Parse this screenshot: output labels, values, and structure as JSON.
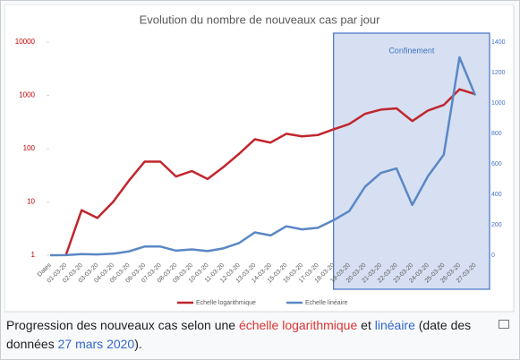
{
  "chart_data": {
    "type": "line",
    "title": "Evolution du nombre de nouveaux cas par jour",
    "annotation": "Confinement",
    "shade_from": "18-03-20",
    "categories": [
      "Dates",
      "01-03-20",
      "02-03-20",
      "03-03-20",
      "04-03-20",
      "05-03-20",
      "06-03-20",
      "07-03-20",
      "08-03-20",
      "09-03-20",
      "10-03-20",
      "11-03-20",
      "12-03-20",
      "13-03-20",
      "14-03-20",
      "15-03-20",
      "16-03-20",
      "17-03-20",
      "18-03-20",
      "19-03-20",
      "20-03-20",
      "21-03-20",
      "22-03-20",
      "23-03-20",
      "24-03-20",
      "25-03-20",
      "26-03-20",
      "27-03-20"
    ],
    "series": [
      {
        "name": "Echelle logarithmique",
        "color": "#c0262d",
        "axis": "y",
        "values": [
          null,
          1,
          7,
          5,
          10,
          25,
          57,
          57,
          30,
          38,
          27,
          45,
          80,
          150,
          130,
          190,
          170,
          180,
          230,
          290,
          450,
          540,
          570,
          330,
          520,
          660,
          1300,
          1050
        ]
      },
      {
        "name": "Echelle linéaire",
        "color": "#5b87c5",
        "axis": "y2",
        "values": [
          0,
          1,
          7,
          5,
          10,
          25,
          57,
          57,
          30,
          38,
          27,
          45,
          80,
          150,
          130,
          190,
          170,
          180,
          230,
          290,
          450,
          540,
          570,
          330,
          520,
          660,
          1300,
          1050
        ]
      }
    ],
    "ylim": [
      1,
      10000
    ],
    "yscale": "log",
    "yticks": [
      1,
      10,
      100,
      1000,
      10000
    ],
    "y2lim": [
      0,
      1400
    ],
    "y2ticks": [
      0,
      200,
      400,
      600,
      800,
      1000,
      1200,
      1400
    ],
    "legend": "bottom"
  },
  "caption": {
    "parts": [
      {
        "text": "Progression des nouveaux cas selon une "
      },
      {
        "text": "échelle logarithmique",
        "color": "#d33"
      },
      {
        "text": " et "
      },
      {
        "text": "linéaire",
        "color": "#36c"
      },
      {
        "text": " (date des données "
      },
      {
        "text": "27 mars 2020",
        "color": "#36c"
      },
      {
        "text": ")."
      }
    ]
  }
}
